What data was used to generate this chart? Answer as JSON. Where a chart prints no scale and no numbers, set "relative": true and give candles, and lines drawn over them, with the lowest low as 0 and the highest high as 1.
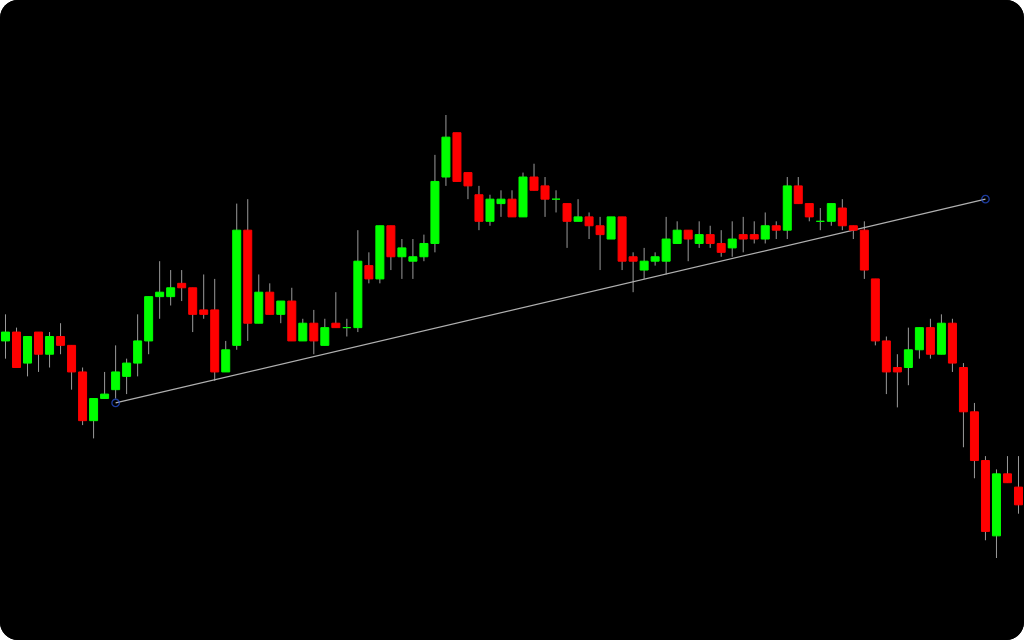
{
  "chart_data": {
    "type": "candlestick",
    "relative": true,
    "marker": "circle",
    "categories": [
      null,
      null,
      null,
      null,
      null,
      null,
      null,
      null,
      null,
      null,
      null,
      null,
      null,
      null,
      null,
      null,
      null,
      null,
      null,
      null,
      null,
      null,
      null,
      null,
      null,
      null,
      null,
      null,
      null,
      null,
      null,
      null,
      null,
      null,
      null,
      null,
      null,
      null,
      null,
      null,
      null,
      null,
      null,
      null,
      null,
      null,
      null,
      null,
      null,
      null,
      null,
      null,
      null,
      null,
      null,
      null,
      null,
      null,
      null,
      null,
      null,
      null,
      null,
      null,
      null,
      null,
      null,
      null,
      null,
      null,
      null,
      null,
      null,
      null,
      null,
      null,
      null,
      null,
      null,
      null,
      null,
      null,
      null,
      null,
      null,
      null,
      null,
      null,
      null,
      null,
      null,
      null,
      null
    ],
    "ohlc": [
      [
        0.49,
        0.55,
        0.45,
        0.51
      ],
      [
        0.51,
        0.52,
        0.43,
        0.43
      ],
      [
        0.44,
        0.5,
        0.41,
        0.5
      ],
      [
        0.51,
        0.51,
        0.42,
        0.46
      ],
      [
        0.46,
        0.51,
        0.43,
        0.5
      ],
      [
        0.5,
        0.53,
        0.46,
        0.48
      ],
      [
        0.48,
        0.48,
        0.38,
        0.42
      ],
      [
        0.42,
        0.43,
        0.3,
        0.31
      ],
      [
        0.31,
        0.36,
        0.27,
        0.36
      ],
      [
        0.36,
        0.42,
        0.36,
        0.37
      ],
      [
        0.38,
        0.48,
        0.36,
        0.42
      ],
      [
        0.41,
        0.45,
        0.37,
        0.44
      ],
      [
        0.44,
        0.55,
        0.41,
        0.49
      ],
      [
        0.49,
        0.59,
        0.46,
        0.59
      ],
      [
        0.59,
        0.67,
        0.54,
        0.6
      ],
      [
        0.59,
        0.65,
        0.57,
        0.61
      ],
      [
        0.62,
        0.65,
        0.58,
        0.61
      ],
      [
        0.61,
        0.61,
        0.51,
        0.55
      ],
      [
        0.56,
        0.64,
        0.54,
        0.55
      ],
      [
        0.56,
        0.63,
        0.4,
        0.42
      ],
      [
        0.42,
        0.49,
        0.42,
        0.47
      ],
      [
        0.48,
        0.8,
        0.47,
        0.74
      ],
      [
        0.74,
        0.81,
        0.49,
        0.53
      ],
      [
        0.53,
        0.64,
        0.53,
        0.6
      ],
      [
        0.6,
        0.62,
        0.55,
        0.55
      ],
      [
        0.55,
        0.58,
        0.53,
        0.58
      ],
      [
        0.58,
        0.61,
        0.49,
        0.49
      ],
      [
        0.49,
        0.54,
        0.49,
        0.53
      ],
      [
        0.53,
        0.56,
        0.46,
        0.49
      ],
      [
        0.48,
        0.54,
        0.48,
        0.52
      ],
      [
        0.53,
        0.6,
        0.52,
        0.52
      ],
      [
        0.52,
        0.54,
        0.5,
        0.52
      ],
      [
        0.52,
        0.74,
        0.51,
        0.67
      ],
      [
        0.66,
        0.69,
        0.62,
        0.63
      ],
      [
        0.63,
        0.75,
        0.62,
        0.75
      ],
      [
        0.75,
        0.75,
        0.65,
        0.68
      ],
      [
        0.68,
        0.72,
        0.63,
        0.7
      ],
      [
        0.67,
        0.72,
        0.63,
        0.68
      ],
      [
        0.68,
        0.73,
        0.67,
        0.71
      ],
      [
        0.71,
        0.91,
        0.69,
        0.85
      ],
      [
        0.86,
        1,
        0.84,
        0.95
      ],
      [
        0.96,
        0.96,
        0.85,
        0.85
      ],
      [
        0.87,
        0.87,
        0.81,
        0.84
      ],
      [
        0.82,
        0.84,
        0.74,
        0.76
      ],
      [
        0.76,
        0.82,
        0.75,
        0.81
      ],
      [
        0.8,
        0.83,
        0.77,
        0.81
      ],
      [
        0.81,
        0.83,
        0.77,
        0.77
      ],
      [
        0.77,
        0.87,
        0.77,
        0.86
      ],
      [
        0.86,
        0.89,
        0.83,
        0.83
      ],
      [
        0.84,
        0.86,
        0.77,
        0.81
      ],
      [
        0.81,
        0.83,
        0.78,
        0.81
      ],
      [
        0.8,
        0.8,
        0.7,
        0.76
      ],
      [
        0.76,
        0.81,
        0.76,
        0.77
      ],
      [
        0.77,
        0.78,
        0.72,
        0.75
      ],
      [
        0.75,
        0.77,
        0.65,
        0.73
      ],
      [
        0.72,
        0.77,
        0.72,
        0.77
      ],
      [
        0.77,
        0.77,
        0.65,
        0.67
      ],
      [
        0.68,
        0.69,
        0.6,
        0.67
      ],
      [
        0.65,
        0.7,
        0.63,
        0.67
      ],
      [
        0.67,
        0.69,
        0.66,
        0.68
      ],
      [
        0.67,
        0.77,
        0.64,
        0.72
      ],
      [
        0.71,
        0.76,
        0.71,
        0.74
      ],
      [
        0.74,
        0.74,
        0.67,
        0.72
      ],
      [
        0.71,
        0.76,
        0.7,
        0.73
      ],
      [
        0.73,
        0.75,
        0.7,
        0.71
      ],
      [
        0.71,
        0.74,
        0.68,
        0.69
      ],
      [
        0.7,
        0.76,
        0.68,
        0.72
      ],
      [
        0.73,
        0.77,
        0.69,
        0.72
      ],
      [
        0.73,
        0.76,
        0.71,
        0.72
      ],
      [
        0.72,
        0.78,
        0.71,
        0.75
      ],
      [
        0.75,
        0.76,
        0.72,
        0.74
      ],
      [
        0.74,
        0.86,
        0.72,
        0.84
      ],
      [
        0.84,
        0.86,
        0.8,
        0.8
      ],
      [
        0.8,
        0.8,
        0.76,
        0.77
      ],
      [
        0.76,
        0.79,
        0.74,
        0.76
      ],
      [
        0.76,
        0.8,
        0.75,
        0.8
      ],
      [
        0.79,
        0.81,
        0.74,
        0.75
      ],
      [
        0.75,
        0.75,
        0.72,
        0.74
      ],
      [
        0.74,
        0.76,
        0.63,
        0.65
      ],
      [
        0.63,
        0.63,
        0.48,
        0.49
      ],
      [
        0.49,
        0.5,
        0.37,
        0.42
      ],
      [
        0.43,
        0.46,
        0.34,
        0.42
      ],
      [
        0.43,
        0.52,
        0.39,
        0.47
      ],
      [
        0.47,
        0.52,
        0.45,
        0.52
      ],
      [
        0.52,
        0.54,
        0.45,
        0.46
      ],
      [
        0.46,
        0.55,
        0.46,
        0.53
      ],
      [
        0.53,
        0.54,
        0.42,
        0.44
      ],
      [
        0.43,
        0.44,
        0.25,
        0.33
      ],
      [
        0.33,
        0.35,
        0.18,
        0.22
      ],
      [
        0.22,
        0.23,
        0.04,
        0.06
      ],
      [
        0.05,
        0.2,
        0,
        0.19
      ],
      [
        0.19,
        0.23,
        0.17,
        0.17
      ],
      [
        0.16,
        0.23,
        0.1,
        0.12
      ]
    ],
    "series": [
      {
        "type": "line",
        "color": "#b0b0b0",
        "values": [
          null,
          null,
          null,
          null,
          null,
          null,
          null,
          null,
          null,
          null,
          0.35,
          null,
          null,
          null,
          null,
          null,
          null,
          null,
          null,
          null,
          null,
          null,
          null,
          null,
          null,
          null,
          null,
          null,
          null,
          null,
          null,
          null,
          null,
          null,
          null,
          null,
          null,
          null,
          null,
          null,
          null,
          null,
          null,
          null,
          null,
          null,
          null,
          null,
          null,
          null,
          null,
          null,
          null,
          null,
          null,
          null,
          null,
          null,
          null,
          null,
          null,
          null,
          null,
          null,
          null,
          null,
          null,
          null,
          null,
          null,
          null,
          null,
          null,
          null,
          null,
          null,
          null,
          null,
          null,
          null,
          null,
          null,
          null,
          null,
          null,
          null,
          null,
          null,
          null,
          0.81,
          null,
          null,
          null
        ]
      }
    ]
  }
}
